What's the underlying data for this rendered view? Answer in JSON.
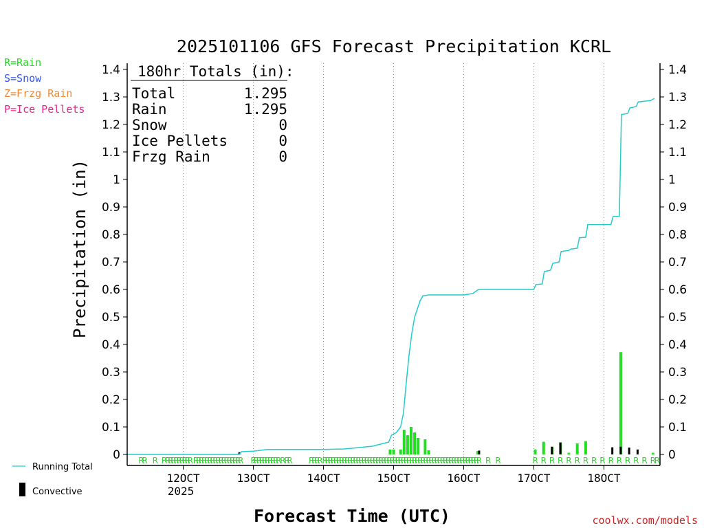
{
  "chart_data": {
    "type": "bar",
    "title": "2025101106 GFS Forecast Precipitation KCRL",
    "xlabel": "Forecast Time (UTC)",
    "ylabel": "Precipitation (in)",
    "ylim": [
      0,
      1.4
    ],
    "xlim": [
      112,
      188
    ],
    "grid": "vertical-dotted",
    "y_ticks": [
      "0",
      "0.1",
      "0.2",
      "0.3",
      "0.4",
      "0.5",
      "0.6",
      "0.7",
      "0.8",
      "0.9",
      "1",
      "1.1",
      "1.2",
      "1.3",
      "1.4"
    ],
    "y_tick_values": [
      0,
      0.1,
      0.2,
      0.3,
      0.4,
      0.5,
      0.6,
      0.7,
      0.8,
      0.9,
      1,
      1.1,
      1.2,
      1.3,
      1.4
    ],
    "x_ticks": [
      {
        "label": "12OCT",
        "value": 120
      },
      {
        "label": "13OCT",
        "value": 130
      },
      {
        "label": "14OCT",
        "value": 140
      },
      {
        "label": "15OCT",
        "value": 150
      },
      {
        "label": "16OCT",
        "value": 160
      },
      {
        "label": "17OCT",
        "value": 170
      },
      {
        "label": "18OCT",
        "value": 180
      }
    ],
    "year_label": "2025",
    "legend": {
      "position": "left",
      "types": [
        {
          "label": "R=Rain",
          "color": "#22dd22"
        },
        {
          "label": "S=Snow",
          "color": "#3355ee"
        },
        {
          "label": "Z=Frzg Rain",
          "color": "#ee8833"
        },
        {
          "label": "P=Ice Pellets",
          "color": "#ee2288"
        }
      ],
      "running_total_label": "Running Total",
      "convective_label": "Convective"
    },
    "totals": {
      "header": "180hr Totals (in):",
      "rows": [
        {
          "label": "Total",
          "value": "1.295"
        },
        {
          "label": "Rain",
          "value": "1.295"
        },
        {
          "label": "Snow",
          "value": "0"
        },
        {
          "label": "Ice Pellets",
          "value": "0"
        },
        {
          "label": "Frzg Rain",
          "value": "0"
        }
      ]
    },
    "series": [
      {
        "name": "Running Total",
        "type": "line",
        "color": "#22cccc",
        "points": [
          [
            112,
            0
          ],
          [
            128,
            0
          ],
          [
            128.3,
            0.01
          ],
          [
            130,
            0.012
          ],
          [
            132,
            0.018
          ],
          [
            140,
            0.018
          ],
          [
            143,
            0.02
          ],
          [
            147,
            0.03
          ],
          [
            149.3,
            0.045
          ],
          [
            149.7,
            0.07
          ],
          [
            150.4,
            0.08
          ],
          [
            151,
            0.1
          ],
          [
            151.4,
            0.15
          ],
          [
            151.8,
            0.26
          ],
          [
            152.2,
            0.36
          ],
          [
            152.6,
            0.44
          ],
          [
            153,
            0.5
          ],
          [
            153.4,
            0.53
          ],
          [
            153.8,
            0.56
          ],
          [
            154.2,
            0.577
          ],
          [
            155,
            0.58
          ],
          [
            160,
            0.58
          ],
          [
            161.3,
            0.585
          ],
          [
            162.1,
            0.6
          ],
          [
            170,
            0.6
          ],
          [
            170.3,
            0.618
          ],
          [
            171.2,
            0.62
          ],
          [
            171.5,
            0.665
          ],
          [
            172.4,
            0.67
          ],
          [
            172.7,
            0.695
          ],
          [
            173.6,
            0.7
          ],
          [
            173.9,
            0.738
          ],
          [
            175,
            0.742
          ],
          [
            175.3,
            0.747
          ],
          [
            176.2,
            0.75
          ],
          [
            176.5,
            0.788
          ],
          [
            177.4,
            0.79
          ],
          [
            177.7,
            0.836
          ],
          [
            181,
            0.836
          ],
          [
            181.3,
            0.865
          ],
          [
            182.2,
            0.866
          ],
          [
            182.5,
            1.236
          ],
          [
            183.4,
            1.24
          ],
          [
            183.7,
            1.26
          ],
          [
            184.6,
            1.265
          ],
          [
            184.9,
            1.282
          ],
          [
            186.7,
            1.287
          ],
          [
            187.2,
            1.295
          ]
        ]
      },
      {
        "name": "Hourly Rain",
        "type": "bar",
        "color": "#22dd22",
        "points": [
          [
            149.5,
            0.018
          ],
          [
            150,
            0.018
          ],
          [
            151,
            0.018
          ],
          [
            151.5,
            0.09
          ],
          [
            152,
            0.07
          ],
          [
            152.5,
            0.1
          ],
          [
            153,
            0.08
          ],
          [
            153.5,
            0.06
          ],
          [
            154.5,
            0.055
          ],
          [
            155,
            0.015
          ],
          [
            162,
            0.012
          ],
          [
            170.2,
            0.018
          ],
          [
            171.4,
            0.046
          ],
          [
            172.6,
            0.028
          ],
          [
            173.8,
            0.045
          ],
          [
            175,
            0.006
          ],
          [
            176.2,
            0.04
          ],
          [
            177.4,
            0.048
          ],
          [
            182.4,
            0.372
          ],
          [
            187,
            0.006
          ]
        ]
      },
      {
        "name": "Convective",
        "type": "bar",
        "color": "#000000",
        "points": [
          [
            128,
            0.008
          ],
          [
            162.2,
            0.014
          ],
          [
            172.6,
            0.028
          ],
          [
            173.8,
            0.042
          ],
          [
            181.2,
            0.026
          ],
          [
            182.4,
            0.028
          ],
          [
            183.6,
            0.025
          ],
          [
            184.8,
            0.018
          ]
        ]
      }
    ],
    "precip_type_markers": {
      "letter": "R",
      "hours": [
        114,
        114.5,
        116,
        117.3,
        117.8,
        118.2,
        118.6,
        119,
        119.4,
        119.8,
        120.2,
        120.6,
        121,
        121.8,
        122.2,
        122.6,
        123,
        123.4,
        123.8,
        124.2,
        124.6,
        125,
        125.4,
        125.8,
        126.2,
        126.6,
        127,
        127.4,
        127.8,
        128.2,
        130,
        130.4,
        130.8,
        131.2,
        131.6,
        132,
        132.4,
        132.8,
        133.2,
        133.6,
        134.2,
        134.8,
        135.2,
        138.3,
        138.7,
        139.1,
        139.5,
        140.2,
        140.6,
        141,
        141.4,
        141.8,
        142.2,
        142.6,
        143,
        143.4,
        143.8,
        144.2,
        144.6,
        145,
        145.4,
        145.8,
        146.2,
        146.6,
        147,
        147.4,
        147.8,
        148.2,
        148.6,
        149,
        149.4,
        149.8,
        150.2,
        150.6,
        151,
        151.4,
        151.8,
        152.2,
        152.6,
        153,
        153.4,
        153.8,
        154.2,
        154.6,
        155,
        155.4,
        155.8,
        156.2,
        156.6,
        157,
        157.4,
        157.8,
        158.2,
        158.6,
        159,
        159.4,
        159.8,
        160.2,
        160.6,
        161,
        161.4,
        161.8,
        162.2,
        163.5,
        164.9,
        170.2,
        171.4,
        172.6,
        173.8,
        175,
        176.2,
        177.4,
        178.6,
        179.8,
        181,
        182.2,
        183.4,
        184.6,
        185.8,
        187,
        187.6
      ]
    },
    "watermark": "coolwx.com/models"
  }
}
